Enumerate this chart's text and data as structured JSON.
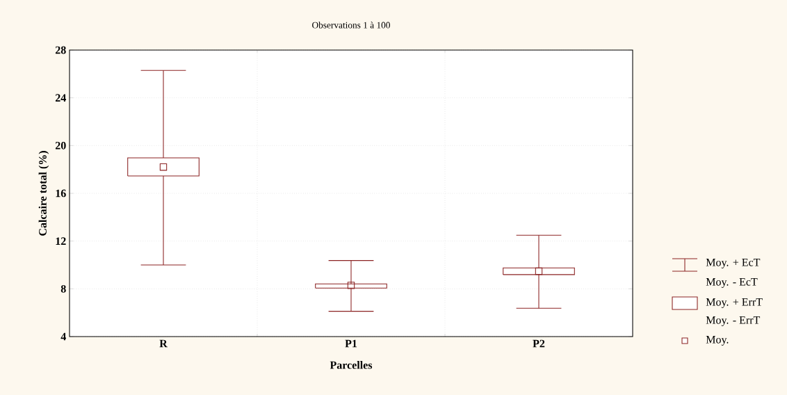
{
  "chart_data": {
    "type": "box",
    "title": "Observations 1 à 100",
    "xlabel": "Parcelles",
    "ylabel": "Calcaire total (%)",
    "categories": [
      "R",
      "P1",
      "P2"
    ],
    "boxes": [
      {
        "low": 10.0,
        "q1": 17.46,
        "q3": 18.97,
        "high": 26.3,
        "mean": 18.2
      },
      {
        "low": 6.12,
        "q1": 8.06,
        "q3": 8.41,
        "high": 10.37,
        "mean": 8.29
      },
      {
        "low": 6.37,
        "q1": 9.19,
        "q3": 9.75,
        "high": 12.49,
        "mean": 9.48
      }
    ],
    "color": "#8b2323",
    "ylim": [
      4,
      28
    ],
    "yticks": [
      4,
      8,
      12,
      16,
      20,
      24,
      28
    ],
    "grid": true,
    "marker": "square",
    "annotations": [
      "Moy. + EcT",
      "Moy. - EcT",
      "Moy. + ErrT",
      "Moy. - ErrT",
      "Moy."
    ]
  }
}
